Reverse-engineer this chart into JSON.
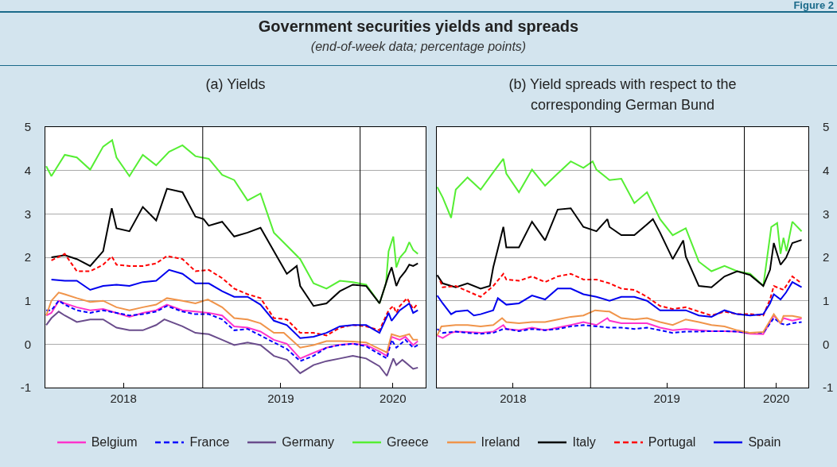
{
  "chart_data": [
    {
      "type": "other",
      "title": "Government securities yields and spreads",
      "subtitle": "(end-of-week data; percentage points)",
      "annotations": [
        "Figure 2"
      ]
    },
    {
      "type": "line",
      "title": "(a) Yields",
      "xlim": [
        "2018-01-01",
        "2020-06-01"
      ],
      "xticks": [
        {
          "value": "2018-07-01",
          "label": "2018"
        },
        {
          "value": "2019-07-01",
          "label": "2019"
        },
        {
          "value": "2020-03-17",
          "label": "2020"
        }
      ],
      "ylim": [
        -1,
        5
      ],
      "yticks": [
        -1,
        0,
        1,
        2,
        3,
        4,
        5
      ],
      "grid": "y",
      "legend": "bottom",
      "line_style": "solid",
      "ref_lines": [
        {
          "axis": "x",
          "value": "2019-01-01",
          "color": "#000000"
        },
        {
          "axis": "x",
          "value": "2020-01-01",
          "color": "#000000"
        }
      ],
      "series": [
        {
          "name": "Belgium",
          "color": "#ff33cc",
          "x": [
            "2018-01-03",
            "2018-01-15",
            "2018-02-01",
            "2018-02-15",
            "2018-03-15",
            "2018-04-15",
            "2018-05-15",
            "2018-06-15",
            "2018-07-15",
            "2018-08-15",
            "2018-09-15",
            "2018-10-10",
            "2018-11-15",
            "2018-12-15",
            "2019-01-15",
            "2019-02-15",
            "2019-03-15",
            "2019-04-15",
            "2019-05-15",
            "2019-06-15",
            "2019-07-15",
            "2019-08-15",
            "2019-09-15",
            "2019-10-15",
            "2019-11-15",
            "2019-12-15",
            "2020-01-15",
            "2020-02-15",
            "2020-03-03",
            "2020-03-14",
            "2020-04-02",
            "2020-04-15",
            "2020-05-03",
            "2020-05-14"
          ],
          "values": [
            0.66,
            0.72,
            1.0,
            0.94,
            0.85,
            0.78,
            0.81,
            0.72,
            0.63,
            0.72,
            0.78,
            0.91,
            0.78,
            0.75,
            0.72,
            0.66,
            0.41,
            0.38,
            0.29,
            0.1,
            0.01,
            -0.33,
            -0.2,
            -0.08,
            -0.01,
            0.01,
            -0.02,
            -0.17,
            -0.27,
            0.17,
            0.1,
            0.17,
            -0.02,
            0.07
          ]
        },
        {
          "name": "France",
          "color": "#0000ff",
          "line_style": "dashed",
          "x": [
            "2018-01-03",
            "2018-01-15",
            "2018-02-01",
            "2018-02-15",
            "2018-03-15",
            "2018-04-15",
            "2018-05-15",
            "2018-06-15",
            "2018-07-15",
            "2018-08-15",
            "2018-09-15",
            "2018-10-10",
            "2018-11-15",
            "2018-12-15",
            "2019-01-15",
            "2019-02-15",
            "2019-03-15",
            "2019-04-15",
            "2019-05-15",
            "2019-06-15",
            "2019-07-15",
            "2019-08-15",
            "2019-09-15",
            "2019-10-15",
            "2019-11-15",
            "2019-12-15",
            "2020-01-15",
            "2020-02-15",
            "2020-03-03",
            "2020-03-14",
            "2020-03-25",
            "2020-04-15",
            "2020-05-03",
            "2020-05-14"
          ],
          "values": [
            0.78,
            0.78,
            1.0,
            0.91,
            0.78,
            0.72,
            0.78,
            0.72,
            0.66,
            0.69,
            0.75,
            0.88,
            0.75,
            0.69,
            0.69,
            0.57,
            0.32,
            0.35,
            0.2,
            0.04,
            -0.11,
            -0.39,
            -0.27,
            -0.08,
            -0.02,
            0.01,
            -0.05,
            -0.23,
            -0.33,
            0.1,
            -0.08,
            0.1,
            -0.08,
            -0.02
          ]
        },
        {
          "name": "Germany",
          "color": "#6a4c8c",
          "x": [
            "2018-01-03",
            "2018-01-15",
            "2018-02-01",
            "2018-02-15",
            "2018-03-15",
            "2018-04-15",
            "2018-05-15",
            "2018-06-15",
            "2018-07-15",
            "2018-08-15",
            "2018-09-15",
            "2018-10-04",
            "2018-11-15",
            "2018-12-15",
            "2019-01-15",
            "2019-02-15",
            "2019-03-15",
            "2019-04-15",
            "2019-05-15",
            "2019-06-15",
            "2019-07-15",
            "2019-08-15",
            "2019-09-15",
            "2019-10-15",
            "2019-11-15",
            "2019-12-15",
            "2020-01-15",
            "2020-02-15",
            "2020-03-03",
            "2020-03-18",
            "2020-03-25",
            "2020-04-08",
            "2020-05-03",
            "2020-05-14"
          ],
          "values": [
            0.44,
            0.6,
            0.75,
            0.66,
            0.51,
            0.57,
            0.57,
            0.38,
            0.32,
            0.32,
            0.44,
            0.57,
            0.41,
            0.26,
            0.23,
            0.1,
            -0.02,
            0.04,
            -0.02,
            -0.27,
            -0.36,
            -0.67,
            -0.48,
            -0.39,
            -0.33,
            -0.27,
            -0.33,
            -0.51,
            -0.73,
            -0.33,
            -0.48,
            -0.36,
            -0.57,
            -0.54
          ]
        },
        {
          "name": "Greece",
          "color": "#55ee33",
          "x": [
            "2018-01-03",
            "2018-01-15",
            "2018-02-15",
            "2018-03-15",
            "2018-04-15",
            "2018-05-15",
            "2018-06-05",
            "2018-06-15",
            "2018-07-15",
            "2018-08-15",
            "2018-09-15",
            "2018-10-15",
            "2018-11-15",
            "2018-12-15",
            "2019-01-15",
            "2019-02-15",
            "2019-03-15",
            "2019-04-15",
            "2019-05-15",
            "2019-06-15",
            "2019-07-15",
            "2019-08-15",
            "2019-09-15",
            "2019-10-15",
            "2019-11-15",
            "2019-12-15",
            "2020-01-15",
            "2020-02-15",
            "2020-03-01",
            "2020-03-07",
            "2020-03-18",
            "2020-03-25",
            "2020-04-02",
            "2020-04-15",
            "2020-04-24",
            "2020-05-03",
            "2020-05-14"
          ],
          "values": [
            4.1,
            3.87,
            4.36,
            4.3,
            4.02,
            4.55,
            4.7,
            4.3,
            3.87,
            4.36,
            4.12,
            4.43,
            4.58,
            4.33,
            4.27,
            3.9,
            3.78,
            3.31,
            3.47,
            2.57,
            2.27,
            1.96,
            1.4,
            1.28,
            1.46,
            1.43,
            1.37,
            0.94,
            1.4,
            2.14,
            2.48,
            1.77,
            1.99,
            2.14,
            2.35,
            2.17,
            2.08
          ]
        },
        {
          "name": "Ireland",
          "color": "#f0944a",
          "x": [
            "2018-01-03",
            "2018-01-15",
            "2018-02-01",
            "2018-02-15",
            "2018-03-15",
            "2018-04-15",
            "2018-05-15",
            "2018-06-15",
            "2018-07-15",
            "2018-08-15",
            "2018-09-15",
            "2018-10-10",
            "2018-11-15",
            "2018-12-15",
            "2019-01-13",
            "2019-02-15",
            "2019-03-15",
            "2019-04-15",
            "2019-05-15",
            "2019-06-15",
            "2019-07-08",
            "2019-08-15",
            "2019-09-15",
            "2019-10-15",
            "2019-11-15",
            "2019-12-15",
            "2020-01-15",
            "2020-02-15",
            "2020-03-03",
            "2020-03-14",
            "2020-04-02",
            "2020-04-24",
            "2020-05-03",
            "2020-05-14"
          ],
          "values": [
            0.66,
            1.0,
            1.19,
            1.15,
            1.06,
            0.97,
            1.0,
            0.85,
            0.78,
            0.85,
            0.91,
            1.06,
            1.0,
            0.94,
            1.03,
            0.85,
            0.6,
            0.57,
            0.48,
            0.26,
            0.26,
            -0.08,
            -0.02,
            0.07,
            0.07,
            0.06,
            0.04,
            -0.11,
            -0.19,
            0.23,
            0.17,
            0.23,
            0.1,
            0.1
          ]
        },
        {
          "name": "Italy",
          "color": "#000000",
          "x": [
            "2018-01-15",
            "2018-02-15",
            "2018-03-15",
            "2018-04-15",
            "2018-05-15",
            "2018-06-04",
            "2018-06-15",
            "2018-07-15",
            "2018-08-15",
            "2018-09-15",
            "2018-10-10",
            "2018-11-15",
            "2018-12-15",
            "2019-01-03",
            "2019-01-15",
            "2019-02-15",
            "2019-03-15",
            "2019-04-15",
            "2019-05-15",
            "2019-06-15",
            "2019-07-15",
            "2019-08-07",
            "2019-08-15",
            "2019-09-15",
            "2019-10-15",
            "2019-11-15",
            "2019-12-15",
            "2020-01-15",
            "2020-02-15",
            "2020-03-07",
            "2020-03-14",
            "2020-03-25",
            "2020-04-02",
            "2020-04-15",
            "2020-04-24",
            "2020-05-03",
            "2020-05-14"
          ],
          "values": [
            2.0,
            2.05,
            1.96,
            1.8,
            2.14,
            3.13,
            2.67,
            2.6,
            3.16,
            2.85,
            3.58,
            3.5,
            2.94,
            2.88,
            2.73,
            2.82,
            2.48,
            2.57,
            2.68,
            2.14,
            1.62,
            1.8,
            1.34,
            0.88,
            0.94,
            1.22,
            1.37,
            1.34,
            0.94,
            1.59,
            1.77,
            1.34,
            1.52,
            1.68,
            1.83,
            1.8,
            1.86
          ]
        },
        {
          "name": "Portugal",
          "color": "#ff0000",
          "line_style": "dashed",
          "x": [
            "2018-01-15",
            "2018-02-15",
            "2018-03-15",
            "2018-04-15",
            "2018-05-15",
            "2018-06-04",
            "2018-06-15",
            "2018-07-15",
            "2018-08-15",
            "2018-09-15",
            "2018-10-10",
            "2018-11-15",
            "2018-12-15",
            "2019-01-15",
            "2019-02-15",
            "2019-03-15",
            "2019-04-15",
            "2019-05-15",
            "2019-06-15",
            "2019-07-15",
            "2019-08-15",
            "2019-09-15",
            "2019-10-15",
            "2019-11-15",
            "2019-12-15",
            "2020-01-15",
            "2020-02-15",
            "2020-03-07",
            "2020-03-18",
            "2020-03-25",
            "2020-04-02",
            "2020-04-19",
            "2020-05-03",
            "2020-05-14"
          ],
          "values": [
            1.93,
            2.08,
            1.68,
            1.68,
            1.83,
            2.02,
            1.83,
            1.8,
            1.8,
            1.86,
            2.03,
            1.96,
            1.68,
            1.71,
            1.52,
            1.28,
            1.15,
            1.06,
            0.6,
            0.57,
            0.26,
            0.26,
            0.2,
            0.38,
            0.44,
            0.41,
            0.32,
            0.78,
            0.88,
            0.72,
            0.88,
            1.06,
            0.81,
            0.94
          ]
        },
        {
          "name": "Spain",
          "color": "#0000ee",
          "x": [
            "2018-01-15",
            "2018-02-15",
            "2018-03-15",
            "2018-04-15",
            "2018-05-15",
            "2018-06-15",
            "2018-07-15",
            "2018-08-15",
            "2018-09-15",
            "2018-10-15",
            "2018-11-15",
            "2018-12-15",
            "2019-01-15",
            "2019-02-15",
            "2019-03-15",
            "2019-04-15",
            "2019-05-15",
            "2019-06-15",
            "2019-07-15",
            "2019-08-15",
            "2019-09-15",
            "2019-10-15",
            "2019-11-15",
            "2019-12-15",
            "2020-01-15",
            "2020-02-15",
            "2020-03-07",
            "2020-03-14",
            "2020-04-02",
            "2020-04-24",
            "2020-05-03",
            "2020-05-14"
          ],
          "values": [
            1.49,
            1.46,
            1.46,
            1.25,
            1.34,
            1.37,
            1.34,
            1.43,
            1.46,
            1.71,
            1.62,
            1.4,
            1.4,
            1.22,
            1.09,
            1.09,
            0.91,
            0.54,
            0.44,
            0.14,
            0.17,
            0.26,
            0.41,
            0.44,
            0.44,
            0.26,
            0.72,
            0.54,
            0.78,
            0.94,
            0.72,
            0.78
          ]
        }
      ]
    },
    {
      "type": "line",
      "title": "(b) Yield spreads with respect to the corresponding German Bund",
      "xlim": [
        "2018-01-01",
        "2020-06-01"
      ],
      "xticks": [
        {
          "value": "2018-07-01",
          "label": "2018"
        },
        {
          "value": "2019-07-01",
          "label": "2019"
        },
        {
          "value": "2020-03-17",
          "label": "2020"
        }
      ],
      "ylim": [
        -1,
        5
      ],
      "yticks": [
        -1,
        0,
        1,
        2,
        3,
        4,
        5
      ],
      "grid": "y",
      "line_style": "solid",
      "ref_lines": [
        {
          "axis": "x",
          "value": "2019-01-01",
          "color": "#000000"
        },
        {
          "axis": "x",
          "value": "2020-01-01",
          "color": "#000000"
        }
      ],
      "series": [
        {
          "color": "#ff33cc",
          "x": [
            "2018-01-02",
            "2018-01-15",
            "2018-02-04",
            "2018-02-15",
            "2018-03-15",
            "2018-04-15",
            "2018-05-15",
            "2018-06-08",
            "2018-06-15",
            "2018-07-15",
            "2018-08-15",
            "2018-09-15",
            "2018-10-15",
            "2018-11-15",
            "2018-12-15",
            "2019-01-15",
            "2019-02-10",
            "2019-02-15",
            "2019-03-15",
            "2019-04-15",
            "2019-05-15",
            "2019-06-15",
            "2019-07-15",
            "2019-08-15",
            "2019-09-15",
            "2019-10-15",
            "2019-11-15",
            "2019-12-15",
            "2020-01-15",
            "2020-02-15",
            "2020-03-11",
            "2020-03-27",
            "2020-04-03",
            "2020-04-24",
            "2020-05-16"
          ],
          "values": [
            0.2,
            0.14,
            0.26,
            0.29,
            0.28,
            0.26,
            0.29,
            0.44,
            0.35,
            0.32,
            0.38,
            0.32,
            0.38,
            0.44,
            0.51,
            0.44,
            0.6,
            0.54,
            0.48,
            0.48,
            0.48,
            0.38,
            0.32,
            0.35,
            0.32,
            0.3,
            0.3,
            0.29,
            0.24,
            0.23,
            0.66,
            0.48,
            0.6,
            0.54,
            0.59
          ]
        },
        {
          "color": "#0000ff",
          "line_style": "dashed",
          "x": [
            "2018-01-02",
            "2018-01-15",
            "2018-02-15",
            "2018-03-15",
            "2018-04-15",
            "2018-05-15",
            "2018-06-08",
            "2018-06-15",
            "2018-07-15",
            "2018-08-15",
            "2018-09-15",
            "2018-10-15",
            "2018-11-15",
            "2018-12-15",
            "2019-01-15",
            "2019-02-15",
            "2019-03-15",
            "2019-04-15",
            "2019-05-15",
            "2019-06-15",
            "2019-07-15",
            "2019-08-15",
            "2019-09-15",
            "2019-10-15",
            "2019-11-15",
            "2019-12-15",
            "2020-01-15",
            "2020-02-15",
            "2020-03-11",
            "2020-03-27",
            "2020-04-09",
            "2020-04-24",
            "2020-05-16"
          ],
          "values": [
            0.35,
            0.26,
            0.29,
            0.26,
            0.24,
            0.26,
            0.35,
            0.35,
            0.3,
            0.35,
            0.32,
            0.35,
            0.41,
            0.44,
            0.41,
            0.38,
            0.38,
            0.35,
            0.38,
            0.32,
            0.26,
            0.29,
            0.29,
            0.3,
            0.3,
            0.29,
            0.26,
            0.26,
            0.6,
            0.48,
            0.44,
            0.48,
            0.51
          ]
        },
        {
          "color": "#55ee33",
          "x": [
            "2018-01-02",
            "2018-01-15",
            "2018-02-04",
            "2018-02-15",
            "2018-03-15",
            "2018-04-15",
            "2018-05-15",
            "2018-06-08",
            "2018-06-15",
            "2018-07-15",
            "2018-08-15",
            "2018-09-15",
            "2018-10-15",
            "2018-11-15",
            "2018-12-15",
            "2019-01-06",
            "2019-01-15",
            "2019-02-15",
            "2019-03-15",
            "2019-04-15",
            "2019-05-15",
            "2019-06-15",
            "2019-07-15",
            "2019-08-15",
            "2019-09-15",
            "2019-10-15",
            "2019-11-15",
            "2019-12-15",
            "2020-01-15",
            "2020-02-15",
            "2020-03-05",
            "2020-03-19",
            "2020-03-27",
            "2020-04-03",
            "2020-04-10",
            "2020-04-24",
            "2020-05-16"
          ],
          "values": [
            3.62,
            3.38,
            2.91,
            3.56,
            3.84,
            3.56,
            3.96,
            4.27,
            3.93,
            3.5,
            4.02,
            3.65,
            3.93,
            4.21,
            4.06,
            4.21,
            4.02,
            3.78,
            3.81,
            3.25,
            3.5,
            2.88,
            2.51,
            2.67,
            1.9,
            1.68,
            1.8,
            1.68,
            1.62,
            1.34,
            2.7,
            2.79,
            2.08,
            2.45,
            2.14,
            2.82,
            2.6
          ]
        },
        {
          "color": "#f0944a",
          "x": [
            "2018-01-02",
            "2018-01-12",
            "2018-02-15",
            "2018-03-15",
            "2018-04-15",
            "2018-05-15",
            "2018-06-05",
            "2018-06-15",
            "2018-07-15",
            "2018-08-15",
            "2018-09-15",
            "2018-10-15",
            "2018-11-15",
            "2018-12-15",
            "2019-01-12",
            "2019-02-15",
            "2019-03-15",
            "2019-04-15",
            "2019-05-15",
            "2019-06-15",
            "2019-07-15",
            "2019-08-15",
            "2019-09-15",
            "2019-10-15",
            "2019-11-15",
            "2019-12-15",
            "2020-01-15",
            "2020-02-15",
            "2020-03-02",
            "2020-03-11",
            "2020-03-27",
            "2020-04-03",
            "2020-04-24",
            "2020-05-16"
          ],
          "values": [
            0.2,
            0.41,
            0.44,
            0.44,
            0.41,
            0.44,
            0.6,
            0.51,
            0.48,
            0.51,
            0.51,
            0.57,
            0.63,
            0.66,
            0.78,
            0.75,
            0.6,
            0.57,
            0.6,
            0.51,
            0.44,
            0.57,
            0.51,
            0.44,
            0.41,
            0.32,
            0.26,
            0.28,
            0.54,
            0.69,
            0.48,
            0.65,
            0.65,
            0.61
          ]
        },
        {
          "color": "#000000",
          "x": [
            "2018-01-02",
            "2018-01-15",
            "2018-02-15",
            "2018-03-15",
            "2018-04-15",
            "2018-05-07",
            "2018-05-15",
            "2018-06-08",
            "2018-06-15",
            "2018-07-15",
            "2018-08-15",
            "2018-09-15",
            "2018-10-15",
            "2018-11-15",
            "2018-12-15",
            "2019-01-15",
            "2019-02-10",
            "2019-02-15",
            "2019-03-15",
            "2019-04-15",
            "2019-05-15",
            "2019-05-29",
            "2019-06-15",
            "2019-07-15",
            "2019-08-09",
            "2019-08-15",
            "2019-09-15",
            "2019-10-15",
            "2019-11-15",
            "2019-12-15",
            "2020-01-15",
            "2020-02-15",
            "2020-03-02",
            "2020-03-11",
            "2020-03-27",
            "2020-04-09",
            "2020-04-24",
            "2020-05-16"
          ],
          "values": [
            1.59,
            1.4,
            1.31,
            1.4,
            1.28,
            1.34,
            1.77,
            2.7,
            2.23,
            2.23,
            2.82,
            2.39,
            3.1,
            3.13,
            2.7,
            2.6,
            2.88,
            2.7,
            2.51,
            2.51,
            2.76,
            2.88,
            2.57,
            1.96,
            2.39,
            2.02,
            1.34,
            1.31,
            1.56,
            1.68,
            1.59,
            1.34,
            1.71,
            2.33,
            1.83,
            1.99,
            2.33,
            2.4
          ]
        },
        {
          "color": "#ff0000",
          "line_style": "dashed",
          "x": [
            "2018-01-09",
            "2018-01-15",
            "2018-02-15",
            "2018-03-15",
            "2018-04-15",
            "2018-05-15",
            "2018-06-08",
            "2018-06-15",
            "2018-07-15",
            "2018-08-15",
            "2018-09-15",
            "2018-10-15",
            "2018-11-15",
            "2018-12-15",
            "2019-01-15",
            "2019-02-15",
            "2019-03-15",
            "2019-04-15",
            "2019-05-15",
            "2019-06-15",
            "2019-07-15",
            "2019-08-15",
            "2019-09-15",
            "2019-10-15",
            "2019-11-15",
            "2019-12-15",
            "2020-01-15",
            "2020-02-15",
            "2020-03-02",
            "2020-03-11",
            "2020-04-03",
            "2020-04-24",
            "2020-05-16"
          ],
          "values": [
            1.46,
            1.31,
            1.34,
            1.22,
            1.09,
            1.34,
            1.62,
            1.49,
            1.46,
            1.56,
            1.43,
            1.56,
            1.62,
            1.49,
            1.49,
            1.4,
            1.28,
            1.25,
            1.09,
            0.88,
            0.81,
            0.85,
            0.75,
            0.66,
            0.75,
            0.69,
            0.69,
            0.66,
            1.03,
            1.34,
            1.25,
            1.56,
            1.4
          ]
        },
        {
          "color": "#0000ee",
          "x": [
            "2018-01-02",
            "2018-01-15",
            "2018-02-04",
            "2018-02-15",
            "2018-03-15",
            "2018-03-30",
            "2018-04-15",
            "2018-05-15",
            "2018-05-26",
            "2018-06-15",
            "2018-07-15",
            "2018-08-15",
            "2018-09-15",
            "2018-10-15",
            "2018-11-15",
            "2018-12-15",
            "2019-01-15",
            "2019-02-15",
            "2019-03-15",
            "2019-04-15",
            "2019-05-15",
            "2019-06-15",
            "2019-07-15",
            "2019-08-15",
            "2019-09-15",
            "2019-10-15",
            "2019-11-15",
            "2019-12-15",
            "2020-01-15",
            "2020-02-15",
            "2020-03-02",
            "2020-03-11",
            "2020-03-27",
            "2020-04-09",
            "2020-04-24",
            "2020-05-16"
          ],
          "values": [
            1.12,
            0.94,
            0.69,
            0.75,
            0.78,
            0.66,
            0.69,
            0.78,
            1.06,
            0.91,
            0.94,
            1.12,
            1.03,
            1.28,
            1.28,
            1.15,
            1.09,
            1.0,
            1.09,
            1.09,
            1.0,
            0.78,
            0.78,
            0.78,
            0.66,
            0.63,
            0.78,
            0.69,
            0.66,
            0.69,
            0.94,
            1.15,
            1.03,
            1.19,
            1.43,
            1.31
          ]
        }
      ]
    }
  ]
}
